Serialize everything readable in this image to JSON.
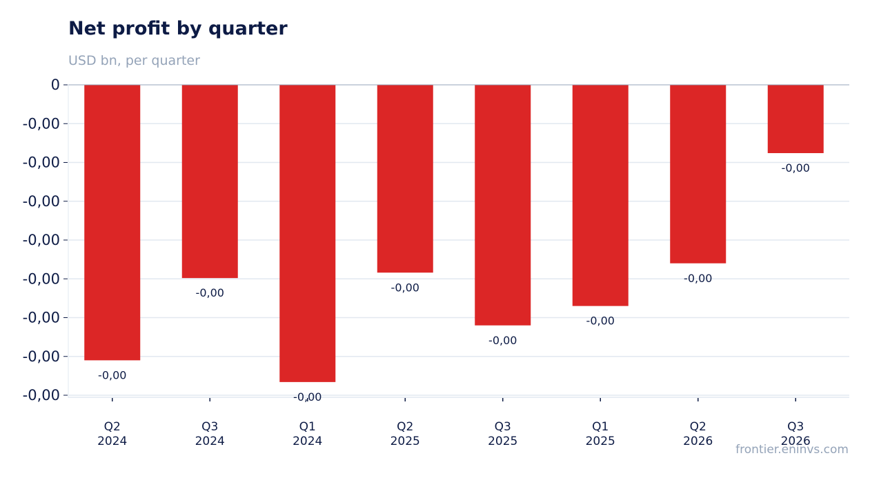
{
  "header": {
    "title": "Net profit by quarter",
    "subtitle": "USD bn, per quarter"
  },
  "footer": {
    "source": "frontier.eninvs.com"
  },
  "colors": {
    "bar": "#dc2626",
    "grid": "#e2e8f0",
    "text": "#0d1b45",
    "muted": "#94a3b8"
  },
  "chart_data": {
    "type": "bar",
    "title": "Net profit by quarter",
    "subtitle": "USD bn, per quarter",
    "categories": [
      [
        "Q2",
        "2024"
      ],
      [
        "Q3",
        "2024"
      ],
      [
        "Q1",
        "2024"
      ],
      [
        "Q2",
        "2025"
      ],
      [
        "Q3",
        "2025"
      ],
      [
        "Q1",
        "2025"
      ],
      [
        "Q2",
        "2026"
      ],
      [
        "Q3",
        "2026"
      ]
    ],
    "values": [
      -0.00355,
      -0.00249,
      -0.00383,
      -0.00242,
      -0.0031,
      -0.00285,
      -0.0023,
      -0.00088
    ],
    "data_labels": [
      "-0,00",
      "-0,00",
      "-0,00",
      "-0,00",
      "-0,00",
      "-0,00",
      "-0,00",
      "-0,00"
    ],
    "ylim": [
      -0.004,
      0
    ],
    "yticks": [
      0,
      -0.0005,
      -0.001,
      -0.0015,
      -0.002,
      -0.0025,
      -0.003,
      -0.0035,
      -0.004
    ],
    "ytick_labels": [
      "0",
      "-0,00",
      "-0,00",
      "-0,00",
      "-0,00",
      "-0,00",
      "-0,00",
      "-0,00",
      "-0,00"
    ],
    "grid": true,
    "legend": "none"
  }
}
